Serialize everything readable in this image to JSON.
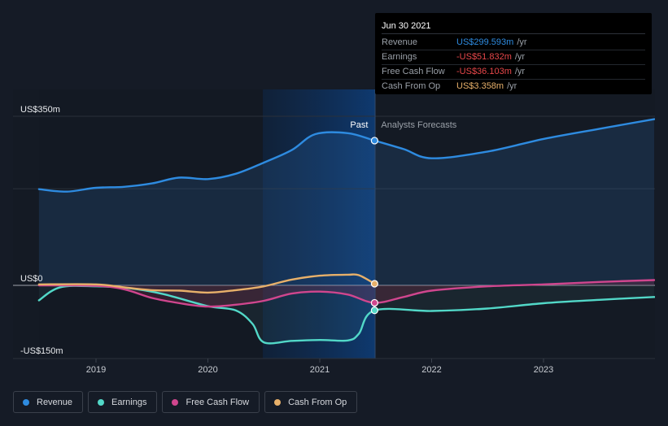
{
  "chart_data": {
    "type": "line",
    "title": "",
    "y_axis": {
      "unit": "US$m",
      "range": [
        -150,
        350
      ],
      "labeled_ticks": [
        "US$350m",
        "US$0",
        "-US$150m"
      ],
      "tick_values": [
        350,
        0,
        -150
      ]
    },
    "x_axis": {
      "range": [
        "2018-06",
        "2023-12"
      ],
      "ticks": [
        "2019",
        "2020",
        "2021",
        "2022",
        "2023"
      ],
      "tick_values": [
        2019.0,
        2020.0,
        2021.0,
        2022.0,
        2023.0
      ]
    },
    "regions": {
      "past_label": "Past",
      "forecast_label": "Analysts Forecasts",
      "divider_date": "Jun 30 2021"
    },
    "grid": "horizontal",
    "legend_placement": "bottom-left",
    "series": [
      {
        "name": "Revenue",
        "color": "#2e8be0",
        "area": true,
        "points": [
          [
            2018.49,
            199
          ],
          [
            2018.74,
            194
          ],
          [
            2019.0,
            202
          ],
          [
            2019.25,
            204
          ],
          [
            2019.5,
            211
          ],
          [
            2019.74,
            223
          ],
          [
            2020.0,
            220
          ],
          [
            2020.25,
            231
          ],
          [
            2020.5,
            254
          ],
          [
            2020.75,
            280
          ],
          [
            2020.96,
            313
          ],
          [
            2021.25,
            315
          ],
          [
            2021.49,
            299.6
          ],
          [
            2021.75,
            282
          ],
          [
            2022.0,
            263
          ],
          [
            2022.5,
            277
          ],
          [
            2023.0,
            303
          ],
          [
            2023.5,
            324
          ],
          [
            2023.99,
            344
          ]
        ]
      },
      {
        "name": "Earnings",
        "color": "#52d8c8",
        "area": true,
        "points": [
          [
            2018.49,
            -31
          ],
          [
            2018.68,
            -4
          ],
          [
            2019.0,
            -2
          ],
          [
            2019.3,
            -6
          ],
          [
            2019.6,
            -18
          ],
          [
            2020.0,
            -43
          ],
          [
            2020.25,
            -52
          ],
          [
            2020.4,
            -80
          ],
          [
            2020.5,
            -118
          ],
          [
            2020.75,
            -115
          ],
          [
            2021.0,
            -113
          ],
          [
            2021.25,
            -114
          ],
          [
            2021.35,
            -100
          ],
          [
            2021.49,
            -51.8
          ],
          [
            2022.0,
            -53
          ],
          [
            2022.5,
            -48
          ],
          [
            2023.0,
            -37
          ],
          [
            2023.5,
            -30
          ],
          [
            2023.99,
            -24
          ]
        ]
      },
      {
        "name": "Free Cash Flow",
        "color": "#d0468e",
        "area": true,
        "points": [
          [
            2018.49,
            0
          ],
          [
            2019.0,
            -1
          ],
          [
            2019.25,
            -8
          ],
          [
            2019.5,
            -26
          ],
          [
            2019.75,
            -37
          ],
          [
            2020.0,
            -44
          ],
          [
            2020.25,
            -40
          ],
          [
            2020.5,
            -32
          ],
          [
            2020.75,
            -17
          ],
          [
            2021.0,
            -13
          ],
          [
            2021.25,
            -19
          ],
          [
            2021.49,
            -36.1
          ],
          [
            2021.75,
            -24
          ],
          [
            2022.0,
            -11
          ],
          [
            2022.5,
            -2
          ],
          [
            2023.0,
            2
          ],
          [
            2023.5,
            7
          ],
          [
            2023.99,
            11
          ]
        ]
      },
      {
        "name": "Cash From Op",
        "color": "#e7b06a",
        "area": false,
        "points": [
          [
            2018.49,
            2
          ],
          [
            2019.0,
            2
          ],
          [
            2019.25,
            -4
          ],
          [
            2019.5,
            -10
          ],
          [
            2019.75,
            -11
          ],
          [
            2020.0,
            -15
          ],
          [
            2020.25,
            -10
          ],
          [
            2020.5,
            -2
          ],
          [
            2020.75,
            12
          ],
          [
            2021.0,
            20
          ],
          [
            2021.25,
            22
          ],
          [
            2021.35,
            21
          ],
          [
            2021.49,
            3.4
          ]
        ]
      }
    ],
    "tooltip": {
      "date": "Jun 30 2021",
      "rows": [
        {
          "label": "Revenue",
          "value": "US$299.593m",
          "unit": "/yr",
          "color": "#2e8be0"
        },
        {
          "label": "Earnings",
          "value": "-US$51.832m",
          "unit": "/yr",
          "color": "#e8474a"
        },
        {
          "label": "Free Cash Flow",
          "value": "-US$36.103m",
          "unit": "/yr",
          "color": "#e8474a"
        },
        {
          "label": "Cash From Op",
          "value": "US$3.358m",
          "unit": "/yr",
          "color": "#e7b06a"
        }
      ]
    }
  },
  "legend": [
    {
      "label": "Revenue",
      "color": "#2e8be0"
    },
    {
      "label": "Earnings",
      "color": "#52d8c8"
    },
    {
      "label": "Free Cash Flow",
      "color": "#d0468e"
    },
    {
      "label": "Cash From Op",
      "color": "#e7b06a"
    }
  ]
}
